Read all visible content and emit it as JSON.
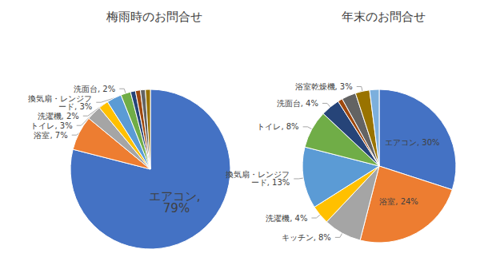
{
  "chart_data": [
    {
      "type": "pie",
      "title": "梅雨時のお問合せ",
      "categories": [
        "エアコン",
        "浴室",
        "トイレ",
        "洗濯機",
        "換気扇・レンジフード",
        "洗面台",
        null,
        null,
        null,
        null
      ],
      "values": [
        79,
        7,
        3,
        2,
        3,
        2,
        1,
        1,
        1,
        1
      ],
      "value_labels": [
        "エアコン, 79%",
        "浴室, 7%",
        "トイレ, 3%",
        "洗濯機, 2%",
        "換気扇・レンジフード, 3%",
        "洗面台, 2%",
        null,
        null,
        null,
        null
      ],
      "colors": [
        "#4472c4",
        "#ed7d31",
        "#a5a5a5",
        "#ffc000",
        "#5b9bd5",
        "#70ad47",
        "#264478",
        "#9e480e",
        "#636363",
        "#997300"
      ],
      "data_labels": true
    },
    {
      "type": "pie",
      "title": "年末のお問合せ",
      "categories": [
        "エアコン",
        "浴室",
        "キッチン",
        "洗濯機",
        "換気扇・レンジフード",
        "トイレ",
        "洗面台",
        null,
        null,
        "浴室乾燥機",
        null
      ],
      "values": [
        30,
        24,
        8,
        4,
        13,
        8,
        4,
        1,
        3,
        3,
        2
      ],
      "value_labels": [
        "エアコン, 30%",
        "浴室, 24%",
        "キッチン, 8%",
        "洗濯機, 4%",
        "換気扇・レンジフード, 13%",
        "トイレ, 8%",
        "洗面台, 4%",
        null,
        null,
        "浴室乾燥機, 3%",
        null
      ],
      "colors": [
        "#4472c4",
        "#ed7d31",
        "#a5a5a5",
        "#ffc000",
        "#5b9bd5",
        "#70ad47",
        "#264478",
        "#9e480e",
        "#636363",
        "#997300",
        "#7cafdd"
      ],
      "data_labels": true
    }
  ]
}
